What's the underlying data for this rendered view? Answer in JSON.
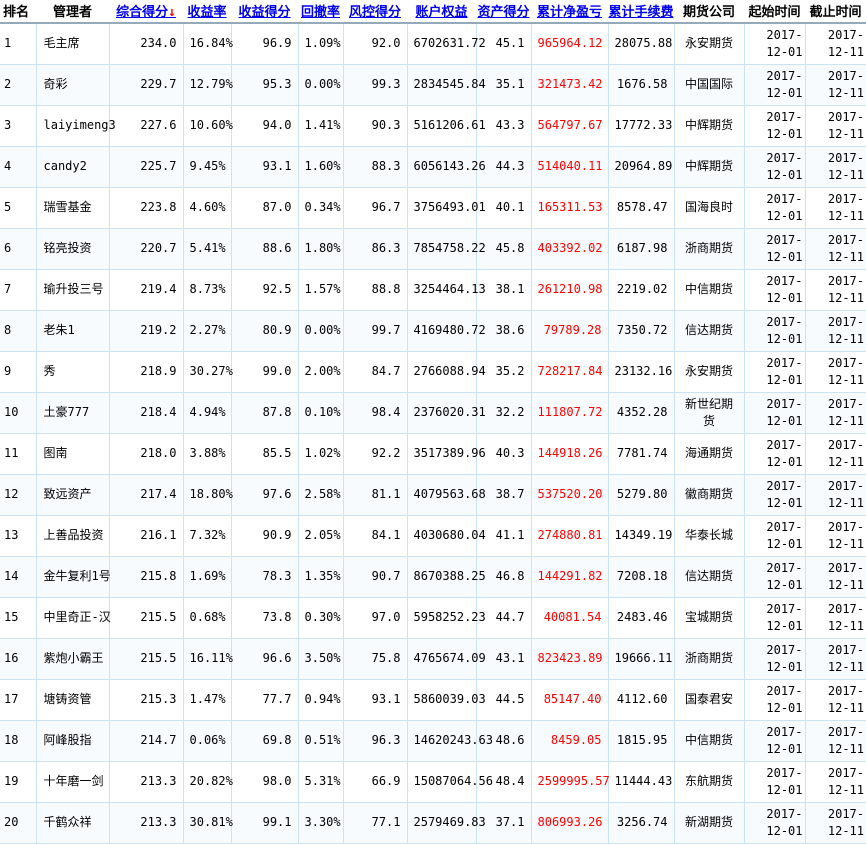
{
  "table": {
    "sort_arrow": "↓",
    "colors": {
      "link": "#0000ee",
      "sort_arrow": "#ff0000",
      "pnl_text": "#ff0000",
      "gridline": "#cbe3f5",
      "header_rule": "#94aabb"
    },
    "columns": [
      {
        "key": "rank",
        "label": "排名",
        "width": 33,
        "align": "left",
        "sortable": false
      },
      {
        "key": "manager",
        "label": "管理者",
        "width": 73,
        "align": "left",
        "sortable": false
      },
      {
        "key": "score",
        "label": "综合得分",
        "width": 74,
        "align": "right",
        "sortable": true,
        "sorted_desc": true
      },
      {
        "key": "return-rate",
        "label": "收益率",
        "width": 48,
        "align": "right",
        "sortable": true
      },
      {
        "key": "return-score",
        "label": "收益得分",
        "width": 67,
        "align": "right",
        "sortable": true
      },
      {
        "key": "drawdown",
        "label": "回撤率",
        "width": 45,
        "align": "right",
        "sortable": true
      },
      {
        "key": "risk-score",
        "label": "风控得分",
        "width": 64,
        "align": "right",
        "sortable": true
      },
      {
        "key": "equity",
        "label": "账户权益",
        "width": 69,
        "align": "right",
        "sortable": true
      },
      {
        "key": "asset-score",
        "label": "资产得分",
        "width": 55,
        "align": "right",
        "sortable": true
      },
      {
        "key": "net-pnl",
        "label": "累计净盈亏",
        "width": 77,
        "align": "right",
        "sortable": true,
        "red": true
      },
      {
        "key": "fees",
        "label": "累计手续费",
        "width": 66,
        "align": "right",
        "sortable": true
      },
      {
        "key": "company",
        "label": "期货公司",
        "width": 70,
        "align": "center",
        "sortable": false
      },
      {
        "key": "start",
        "label": "起始时间",
        "width": 61,
        "align": "right",
        "sortable": false
      },
      {
        "key": "end",
        "label": "截止时间",
        "width": 61,
        "align": "right",
        "sortable": false
      }
    ],
    "rows": [
      [
        "1",
        "毛主席",
        "234.0",
        "16.84%",
        "96.9",
        "1.09%",
        "92.0",
        "6702631.72",
        "45.1",
        "965964.12",
        "28075.88",
        "永安期货",
        "2017-12-01",
        "2017-12-11"
      ],
      [
        "2",
        "奇彩",
        "229.7",
        "12.79%",
        "95.3",
        "0.00%",
        "99.3",
        "2834545.84",
        "35.1",
        "321473.42",
        "1676.58",
        "中国国际",
        "2017-12-01",
        "2017-12-11"
      ],
      [
        "3",
        "laiyimeng3",
        "227.6",
        "10.60%",
        "94.0",
        "1.41%",
        "90.3",
        "5161206.61",
        "43.3",
        "564797.67",
        "17772.33",
        "中辉期货",
        "2017-12-01",
        "2017-12-11"
      ],
      [
        "4",
        "candy2",
        "225.7",
        "9.45%",
        "93.1",
        "1.60%",
        "88.3",
        "6056143.26",
        "44.3",
        "514040.11",
        "20964.89",
        "中辉期货",
        "2017-12-01",
        "2017-12-11"
      ],
      [
        "5",
        "瑞雪基金",
        "223.8",
        "4.60%",
        "87.0",
        "0.34%",
        "96.7",
        "3756493.01",
        "40.1",
        "165311.53",
        "8578.47",
        "国海良时",
        "2017-12-01",
        "2017-12-11"
      ],
      [
        "6",
        "铭亮投资",
        "220.7",
        "5.41%",
        "88.6",
        "1.80%",
        "86.3",
        "7854758.22",
        "45.8",
        "403392.02",
        "6187.98",
        "浙商期货",
        "2017-12-01",
        "2017-12-11"
      ],
      [
        "7",
        "瑜升投三号",
        "219.4",
        "8.73%",
        "92.5",
        "1.57%",
        "88.8",
        "3254464.13",
        "38.1",
        "261210.98",
        "2219.02",
        "中信期货",
        "2017-12-01",
        "2017-12-11"
      ],
      [
        "8",
        "老朱1",
        "219.2",
        "2.27%",
        "80.9",
        "0.00%",
        "99.7",
        "4169480.72",
        "38.6",
        "79789.28",
        "7350.72",
        "信达期货",
        "2017-12-01",
        "2017-12-11"
      ],
      [
        "9",
        "秀",
        "218.9",
        "30.27%",
        "99.0",
        "2.00%",
        "84.7",
        "2766088.94",
        "35.2",
        "728217.84",
        "23132.16",
        "永安期货",
        "2017-12-01",
        "2017-12-11"
      ],
      [
        "10",
        "土豪777",
        "218.4",
        "4.94%",
        "87.8",
        "0.10%",
        "98.4",
        "2376020.31",
        "32.2",
        "111807.72",
        "4352.28",
        "新世纪期货",
        "2017-12-01",
        "2017-12-11"
      ],
      [
        "11",
        "图南",
        "218.0",
        "3.88%",
        "85.5",
        "1.02%",
        "92.2",
        "3517389.96",
        "40.3",
        "144918.26",
        "7781.74",
        "海通期货",
        "2017-12-01",
        "2017-12-11"
      ],
      [
        "12",
        "致远资产",
        "217.4",
        "18.80%",
        "97.6",
        "2.58%",
        "81.1",
        "4079563.68",
        "38.7",
        "537520.20",
        "5279.80",
        "徽商期货",
        "2017-12-01",
        "2017-12-11"
      ],
      [
        "13",
        "上善品投资",
        "216.1",
        "7.32%",
        "90.9",
        "2.05%",
        "84.1",
        "4030680.04",
        "41.1",
        "274880.81",
        "14349.19",
        "华泰长城",
        "2017-12-01",
        "2017-12-11"
      ],
      [
        "14",
        "金牛复利1号",
        "215.8",
        "1.69%",
        "78.3",
        "1.35%",
        "90.7",
        "8670388.25",
        "46.8",
        "144291.82",
        "7208.18",
        "信达期货",
        "2017-12-01",
        "2017-12-11"
      ],
      [
        "15",
        "中里奇正-汉",
        "215.5",
        "0.68%",
        "73.8",
        "0.30%",
        "97.0",
        "5958252.23",
        "44.7",
        "40081.54",
        "2483.46",
        "宝城期货",
        "2017-12-01",
        "2017-12-11"
      ],
      [
        "16",
        "紫炮小霸王",
        "215.5",
        "16.11%",
        "96.6",
        "3.50%",
        "75.8",
        "4765674.09",
        "43.1",
        "823423.89",
        "19666.11",
        "浙商期货",
        "2017-12-01",
        "2017-12-11"
      ],
      [
        "17",
        "塘铸资管",
        "215.3",
        "1.47%",
        "77.7",
        "0.94%",
        "93.1",
        "5860039.03",
        "44.5",
        "85147.40",
        "4112.60",
        "国泰君安",
        "2017-12-01",
        "2017-12-11"
      ],
      [
        "18",
        "阿峰股指",
        "214.7",
        "0.06%",
        "69.8",
        "0.51%",
        "96.3",
        "14620243.63",
        "48.6",
        "8459.05",
        "1815.95",
        "中信期货",
        "2017-12-01",
        "2017-12-11"
      ],
      [
        "19",
        "十年磨一剑",
        "213.3",
        "20.82%",
        "98.0",
        "5.31%",
        "66.9",
        "15087064.56",
        "48.4",
        "2599995.57",
        "11444.43",
        "东航期货",
        "2017-12-01",
        "2017-12-11"
      ],
      [
        "20",
        "千鹤众祥",
        "213.3",
        "30.81%",
        "99.1",
        "3.30%",
        "77.1",
        "2579469.83",
        "37.1",
        "806993.26",
        "3256.74",
        "新湖期货",
        "2017-12-01",
        "2017-12-11"
      ]
    ]
  }
}
